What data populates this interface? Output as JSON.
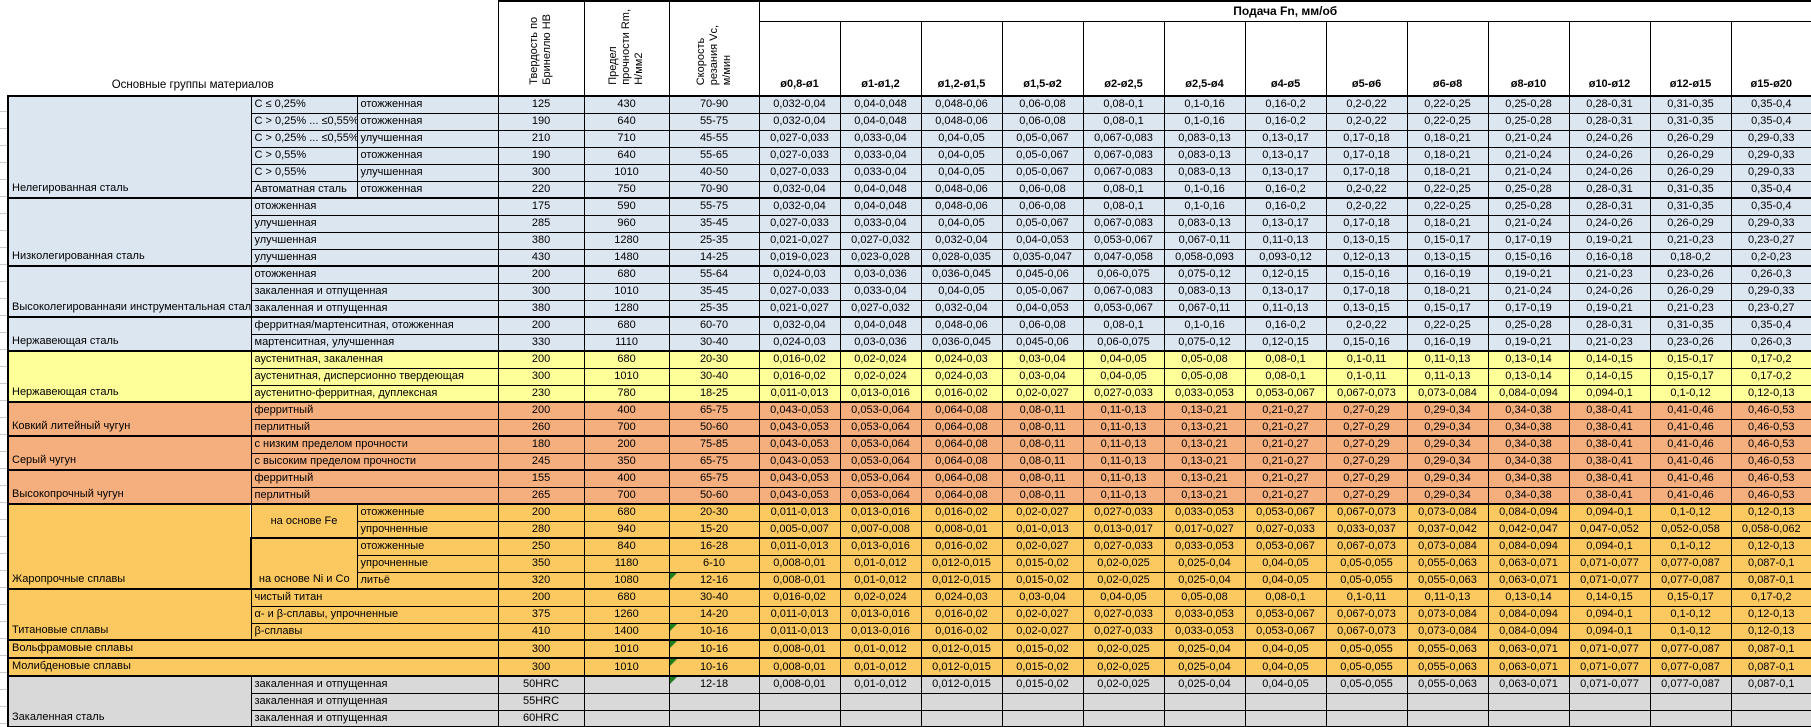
{
  "palette": {
    "blue": "#DCE6F1",
    "yellow": "#FFFF99",
    "salmon": "#F5AE7D",
    "amber": "#FBC95F",
    "gray": "#D9D9D9",
    "note_triangle": "#1E7E1E"
  },
  "header": {
    "materials_label": "Основные группы материалов",
    "hb_label": "Твердость по\nБринеллю HB",
    "rm_label": "Предел\nпрочности Rm,\nН/мм2",
    "vc_label": "Скорость\nрезания Vc,\nм/мин",
    "feed_label": "Подача Fn, мм/об",
    "diameters": [
      "ø0,8-ø1",
      "ø1-ø1,2",
      "ø1,2-ø1,5",
      "ø1,5-ø2",
      "ø2-ø2,5",
      "ø2,5-ø4",
      "ø4-ø5",
      "ø5-ø6",
      "ø6-ø8",
      "ø8-ø10",
      "ø10-ø12",
      "ø12-ø15",
      "ø15-ø20"
    ]
  },
  "feed_patterns": {
    "P1": [
      "0,032-0,04",
      "0,04-0,048",
      "0,048-0,06",
      "0,06-0,08",
      "0,08-0,1",
      "0,1-0,16",
      "0,16-0,2",
      "0,2-0,22",
      "0,22-0,25",
      "0,25-0,28",
      "0,28-0,31",
      "0,31-0,35",
      "0,35-0,4"
    ],
    "P2": [
      "0,027-0,033",
      "0,033-0,04",
      "0,04-0,05",
      "0,05-0,067",
      "0,067-0,083",
      "0,083-0,13",
      "0,13-0,17",
      "0,17-0,18",
      "0,18-0,21",
      "0,21-0,24",
      "0,24-0,26",
      "0,26-0,29",
      "0,29-0,33"
    ],
    "P3": [
      "0,021-0,027",
      "0,027-0,032",
      "0,032-0,04",
      "0,04-0,053",
      "0,053-0,067",
      "0,067-0,11",
      "0,11-0,13",
      "0,13-0,15",
      "0,15-0,17",
      "0,17-0,19",
      "0,19-0,21",
      "0,21-0,23",
      "0,23-0,27"
    ],
    "P4": [
      "0,019-0,023",
      "0,023-0,028",
      "0,028-0,035",
      "0,035-0,047",
      "0,047-0,058",
      "0,058-0,093",
      "0,093-0,12",
      "0,12-0,13",
      "0,13-0,15",
      "0,15-0,16",
      "0,16-0,18",
      "0,18-0,2",
      "0,2-0,23"
    ],
    "P5": [
      "0,024-0,03",
      "0,03-0,036",
      "0,036-0,045",
      "0,045-0,06",
      "0,06-0,075",
      "0,075-0,12",
      "0,12-0,15",
      "0,15-0,16",
      "0,16-0,19",
      "0,19-0,21",
      "0,21-0,23",
      "0,23-0,26",
      "0,26-0,3"
    ],
    "P6": [
      "0,016-0,02",
      "0,02-0,024",
      "0,024-0,03",
      "0,03-0,04",
      "0,04-0,05",
      "0,05-0,08",
      "0,08-0,1",
      "0,1-0,11",
      "0,11-0,13",
      "0,13-0,14",
      "0,14-0,15",
      "0,15-0,17",
      "0,17-0,2"
    ],
    "P7": [
      "0,011-0,013",
      "0,013-0,016",
      "0,016-0,02",
      "0,02-0,027",
      "0,027-0,033",
      "0,033-0,053",
      "0,053-0,067",
      "0,067-0,073",
      "0,073-0,084",
      "0,084-0,094",
      "0,094-0,1",
      "0,1-0,12",
      "0,12-0,13"
    ],
    "P8": [
      "0,043-0,053",
      "0,053-0,064",
      "0,064-0,08",
      "0,08-0,11",
      "0,11-0,13",
      "0,13-0,21",
      "0,21-0,27",
      "0,27-0,29",
      "0,29-0,34",
      "0,34-0,38",
      "0,38-0,41",
      "0,41-0,46",
      "0,46-0,53"
    ],
    "P9": [
      "0,005-0,007",
      "0,007-0,008",
      "0,008-0,01",
      "0,01-0,013",
      "0,013-0,017",
      "0,017-0,027",
      "0,027-0,033",
      "0,033-0,037",
      "0,037-0,042",
      "0,042-0,047",
      "0,047-0,052",
      "0,052-0,058",
      "0,058-0,062"
    ],
    "P10": [
      "0,008-0,01",
      "0,01-0,012",
      "0,012-0,015",
      "0,015-0,02",
      "0,02-0,025",
      "0,025-0,04",
      "0,04-0,05",
      "0,05-0,055",
      "0,055-0,063",
      "0,063-0,071",
      "0,071-0,077",
      "0,077-0,087",
      "0,087-0,1"
    ],
    "P0": [
      "",
      "",
      "",
      "",
      "",
      "",
      "",
      "",
      "",
      "",
      "",
      "",
      ""
    ]
  },
  "rows": [
    {
      "color": "blue",
      "labels": [
        {
          "t": "Нелегированная сталь",
          "k": "g",
          "rs": 6
        },
        {
          "t": "C ≤ 0,25%",
          "k": "t"
        },
        {
          "t": "отожженная",
          "k": "t"
        }
      ],
      "hb": "125",
      "rm": "430",
      "vc": "70-90",
      "p": "P1"
    },
    {
      "color": "blue",
      "labels": [
        {
          "t": "C > 0,25% ... ≤0,55%",
          "k": "t"
        },
        {
          "t": "отожженная",
          "k": "t"
        }
      ],
      "hb": "190",
      "rm": "640",
      "vc": "55-75",
      "p": "P1"
    },
    {
      "color": "blue",
      "labels": [
        {
          "t": "C > 0,25% ... ≤0,55%",
          "k": "t"
        },
        {
          "t": "улучшенная",
          "k": "t"
        }
      ],
      "hb": "210",
      "rm": "710",
      "vc": "45-55",
      "p": "P2"
    },
    {
      "color": "blue",
      "labels": [
        {
          "t": "C > 0,55%",
          "k": "t"
        },
        {
          "t": "отожженная",
          "k": "t"
        }
      ],
      "hb": "190",
      "rm": "640",
      "vc": "55-65",
      "p": "P2"
    },
    {
      "color": "blue",
      "labels": [
        {
          "t": "C > 0,55%",
          "k": "t"
        },
        {
          "t": "улучшенная",
          "k": "t"
        }
      ],
      "hb": "300",
      "rm": "1010",
      "vc": "40-50",
      "p": "P2"
    },
    {
      "color": "blue",
      "labels": [
        {
          "t": "Автоматная сталь",
          "k": "t"
        },
        {
          "t": "отожженная",
          "k": "t"
        }
      ],
      "hb": "220",
      "rm": "750",
      "vc": "70-90",
      "p": "P1"
    },
    {
      "color": "blue",
      "labels": [
        {
          "t": "Низколегированная сталь",
          "k": "g",
          "rs": 4
        },
        {
          "t": "отожженная",
          "k": "t",
          "cs": 2
        }
      ],
      "hb": "175",
      "rm": "590",
      "vc": "55-75",
      "p": "P1"
    },
    {
      "color": "blue",
      "labels": [
        {
          "t": "улучшенная",
          "k": "t",
          "cs": 2
        }
      ],
      "hb": "285",
      "rm": "960",
      "vc": "35-45",
      "p": "P2"
    },
    {
      "color": "blue",
      "labels": [
        {
          "t": "улучшенная",
          "k": "t",
          "cs": 2
        }
      ],
      "hb": "380",
      "rm": "1280",
      "vc": "25-35",
      "p": "P3"
    },
    {
      "color": "blue",
      "labels": [
        {
          "t": "улучшенная",
          "k": "t",
          "cs": 2
        }
      ],
      "hb": "430",
      "rm": "1480",
      "vc": "14-25",
      "p": "P4"
    },
    {
      "color": "blue",
      "labels": [
        {
          "t": "Высоколегированнаяи инструментальная сталь",
          "k": "g",
          "rs": 3
        },
        {
          "t": "отожженная",
          "k": "t",
          "cs": 2
        }
      ],
      "hb": "200",
      "rm": "680",
      "vc": "55-64",
      "p": "P5"
    },
    {
      "color": "blue",
      "labels": [
        {
          "t": "закаленная и отпущенная",
          "k": "t",
          "cs": 2
        }
      ],
      "hb": "300",
      "rm": "1010",
      "vc": "35-45",
      "p": "P2"
    },
    {
      "color": "blue",
      "labels": [
        {
          "t": "закаленная и отпущенная",
          "k": "t",
          "cs": 2
        }
      ],
      "hb": "380",
      "rm": "1280",
      "vc": "25-35",
      "p": "P3"
    },
    {
      "color": "blue",
      "labels": [
        {
          "t": "Нержавеющая сталь",
          "k": "g",
          "rs": 2
        },
        {
          "t": "ферритная/мартенситная, отожженная",
          "k": "t",
          "cs": 2
        }
      ],
      "hb": "200",
      "rm": "680",
      "vc": "60-70",
      "p": "P1"
    },
    {
      "color": "blue",
      "labels": [
        {
          "t": "мартенситная, улучшенная",
          "k": "t",
          "cs": 2
        }
      ],
      "hb": "330",
      "rm": "1110",
      "vc": "30-40",
      "p": "P5"
    },
    {
      "color": "yellow",
      "labels": [
        {
          "t": "Нержавеющая сталь",
          "k": "g",
          "rs": 3
        },
        {
          "t": "аустенитная, закаленная",
          "k": "t",
          "cs": 2
        }
      ],
      "hb": "200",
      "rm": "680",
      "vc": "20-30",
      "p": "P6"
    },
    {
      "color": "yellow",
      "labels": [
        {
          "t": "аустенитная, дисперсионно твердеющая",
          "k": "t",
          "cs": 2
        }
      ],
      "hb": "300",
      "rm": "1010",
      "vc": "30-40",
      "p": "P6"
    },
    {
      "color": "yellow",
      "labels": [
        {
          "t": "аустенитно-ферритная, дуплексная",
          "k": "t",
          "cs": 2
        }
      ],
      "hb": "230",
      "rm": "780",
      "vc": "18-25",
      "p": "P7"
    },
    {
      "color": "salmon",
      "labels": [
        {
          "t": "Ковкий литейный чугун",
          "k": "g",
          "rs": 2
        },
        {
          "t": "ферритный",
          "k": "t",
          "cs": 2
        }
      ],
      "hb": "200",
      "rm": "400",
      "vc": "65-75",
      "p": "P8"
    },
    {
      "color": "salmon",
      "labels": [
        {
          "t": "перлитный",
          "k": "t",
          "cs": 2
        }
      ],
      "hb": "260",
      "rm": "700",
      "vc": "50-60",
      "p": "P8"
    },
    {
      "color": "salmon",
      "labels": [
        {
          "t": "Серый чугун",
          "k": "g",
          "rs": 2
        },
        {
          "t": "с низким пределом прочности",
          "k": "t",
          "cs": 2
        }
      ],
      "hb": "180",
      "rm": "200",
      "vc": "75-85",
      "p": "P8"
    },
    {
      "color": "salmon",
      "labels": [
        {
          "t": "с высоким пределом прочности",
          "k": "t",
          "cs": 2
        }
      ],
      "hb": "245",
      "rm": "350",
      "vc": "65-75",
      "p": "P8"
    },
    {
      "color": "salmon",
      "labels": [
        {
          "t": "Высокопрочный чугун",
          "k": "g",
          "rs": 2
        },
        {
          "t": "ферритный",
          "k": "t",
          "cs": 2
        }
      ],
      "hb": "155",
      "rm": "400",
      "vc": "65-75",
      "p": "P8"
    },
    {
      "color": "salmon",
      "labels": [
        {
          "t": "перлитный",
          "k": "t",
          "cs": 2
        }
      ],
      "hb": "265",
      "rm": "700",
      "vc": "50-60",
      "p": "P8"
    },
    {
      "color": "amber",
      "labels": [
        {
          "t": "Жаропрочные сплавы",
          "k": "g",
          "rs": 5
        },
        {
          "t": "на основе Fe",
          "k": "b",
          "rs": 2
        },
        {
          "t": "отожженные",
          "k": "t"
        }
      ],
      "hb": "200",
      "rm": "680",
      "vc": "20-30",
      "p": "P7"
    },
    {
      "color": "amber",
      "labels": [
        {
          "t": "упрочненные",
          "k": "t"
        }
      ],
      "hb": "280",
      "rm": "940",
      "vc": "15-20",
      "p": "P9"
    },
    {
      "color": "amber",
      "labels": [
        {
          "t": "на основе Ni и Co",
          "k": "b",
          "rs": 3,
          "va": "b"
        },
        {
          "t": "отожженные",
          "k": "t"
        }
      ],
      "hb": "250",
      "rm": "840",
      "vc": "16-28",
      "p": "P7"
    },
    {
      "color": "amber",
      "labels": [
        {
          "t": "упрочненные",
          "k": "t"
        }
      ],
      "hb": "350",
      "rm": "1180",
      "vc": "6-10",
      "p": "P10"
    },
    {
      "color": "amber",
      "labels": [
        {
          "t": "литьё",
          "k": "t"
        }
      ],
      "hb": "320",
      "rm": "1080",
      "vc": "12-16",
      "tri": true,
      "p": "P10"
    },
    {
      "color": "amber",
      "labels": [
        {
          "t": "Титановые сплавы",
          "k": "g",
          "rs": 3
        },
        {
          "t": "чистый титан",
          "k": "t",
          "cs": 2
        }
      ],
      "hb": "200",
      "rm": "680",
      "vc": "30-40",
      "p": "P6"
    },
    {
      "color": "amber",
      "labels": [
        {
          "t": "α- и β-сплавы, упрочненные",
          "k": "t",
          "cs": 2
        }
      ],
      "hb": "375",
      "rm": "1260",
      "vc": "14-20",
      "p": "P7"
    },
    {
      "color": "amber",
      "labels": [
        {
          "t": "β-сплавы",
          "k": "t",
          "cs": 2
        }
      ],
      "hb": "410",
      "rm": "1400",
      "vc": "10-16",
      "tri": true,
      "p": "P7"
    },
    {
      "color": "amber",
      "labels": [
        {
          "t": "Вольфрамовые сплавы",
          "k": "g",
          "cs": 3
        }
      ],
      "hb": "300",
      "rm": "1010",
      "vc": "10-16",
      "tri": true,
      "p": "P10"
    },
    {
      "color": "amber",
      "labels": [
        {
          "t": "Молибденовые сплавы",
          "k": "g",
          "cs": 3
        }
      ],
      "hb": "300",
      "rm": "1010",
      "vc": "10-16",
      "tri": true,
      "p": "P10"
    },
    {
      "color": "gray",
      "labels": [
        {
          "t": "Закаленная сталь",
          "k": "g",
          "rs": 3
        },
        {
          "t": "закаленная и отпущенная",
          "k": "t",
          "cs": 2
        }
      ],
      "hb": "50HRC",
      "rm": "",
      "vc": "12-18",
      "tri": true,
      "p": "P10"
    },
    {
      "color": "gray",
      "labels": [
        {
          "t": "закаленная и отпущенная",
          "k": "t",
          "cs": 2
        }
      ],
      "hb": "55HRC",
      "rm": "",
      "vc": "",
      "p": "P0"
    },
    {
      "color": "gray",
      "labels": [
        {
          "t": "закаленная и отпущенная",
          "k": "t",
          "cs": 2
        }
      ],
      "hb": "60HRC",
      "rm": "",
      "vc": "",
      "p": "P0"
    }
  ]
}
